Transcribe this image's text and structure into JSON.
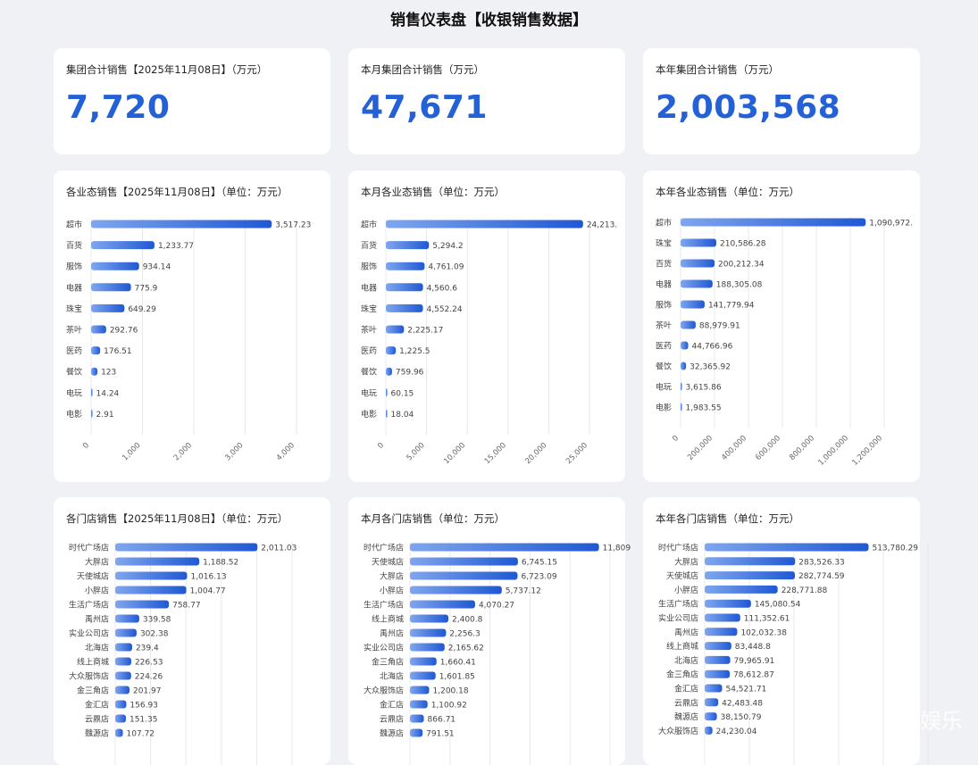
{
  "page": {
    "title": "销售仪表盘【收银销售数据】",
    "watermark": "娱乐"
  },
  "kpis": [
    {
      "title": "集团合计销售【2025年11月08日】（万元）",
      "value": "7,720"
    },
    {
      "title": "本月集团合计销售（万元）",
      "value": "47,671"
    },
    {
      "title": "本年集团合计销售（万元）",
      "value": "2,003,568"
    }
  ],
  "chart_data": [
    {
      "type": "bar",
      "orientation": "horizontal",
      "title": "各业态销售【2025年11月08日】（单位：万元）",
      "categories": [
        "超市",
        "百货",
        "服饰",
        "电器",
        "珠宝",
        "茶叶",
        "医药",
        "餐饮",
        "电玩",
        "电影"
      ],
      "values": [
        3517.23,
        1233.77,
        934.14,
        775.9,
        649.29,
        292.76,
        176.51,
        123,
        14.24,
        2.91
      ],
      "labels": [
        "3,517.23",
        "1,233.77",
        "934.14",
        "775.9",
        "649.29",
        "292.76",
        "176.51",
        "123",
        "14.24",
        "2.91"
      ],
      "xlim": [
        0,
        4000
      ],
      "xticks": [
        "0",
        "1,000",
        "2,000",
        "3,000",
        "4,000"
      ],
      "grid": true
    },
    {
      "type": "bar",
      "orientation": "horizontal",
      "title": "本月各业态销售（单位：万元）",
      "categories": [
        "超市",
        "百货",
        "服饰",
        "电器",
        "珠宝",
        "茶叶",
        "医药",
        "餐饮",
        "电玩",
        "电影"
      ],
      "values": [
        24213,
        5294.2,
        4761.09,
        4560.6,
        4552.24,
        2225.17,
        1225.5,
        759.96,
        60.15,
        18.04
      ],
      "labels": [
        "24,213.",
        "5,294.2",
        "4,761.09",
        "4,560.6",
        "4,552.24",
        "2,225.17",
        "1,225.5",
        "759.96",
        "60.15",
        "18.04"
      ],
      "xlim": [
        0,
        25000
      ],
      "xticks": [
        "0",
        "5,000",
        "10,000",
        "15,000",
        "20,000",
        "25,000"
      ],
      "grid": true
    },
    {
      "type": "bar",
      "orientation": "horizontal",
      "title": "本年各业态销售（单位：万元）",
      "categories": [
        "超市",
        "珠宝",
        "百货",
        "电器",
        "服饰",
        "茶叶",
        "医药",
        "餐饮",
        "电玩",
        "电影"
      ],
      "values": [
        1090972,
        210586.28,
        200212.34,
        188305.08,
        141779.94,
        88979.91,
        44766.96,
        32365.92,
        3615.86,
        1983.55
      ],
      "labels": [
        "1,090,972.",
        "210,586.28",
        "200,212.34",
        "188,305.08",
        "141,779.94",
        "88,979.91",
        "44,766.96",
        "32,365.92",
        "3,615.86",
        "1,983.55"
      ],
      "xlim": [
        0,
        1200000
      ],
      "xticks": [
        "0",
        "200,000",
        "400,000",
        "600,000",
        "800,000",
        "1,000,000",
        "1,200,000"
      ],
      "grid": true
    },
    {
      "type": "bar",
      "orientation": "horizontal",
      "title": "各门店销售【2025年11月08日】（单位：万元）",
      "categories": [
        "时代广场店",
        "大胖店",
        "天使城店",
        "小胖店",
        "生活广场店",
        "禹州店",
        "实业公司店",
        "北海店",
        "线上商城",
        "大众服饰店",
        "金三角店",
        "金汇店",
        "云鼎店",
        "魏源店"
      ],
      "values": [
        2011.03,
        1188.52,
        1016.13,
        1004.77,
        758.77,
        339.58,
        302.38,
        239.4,
        226.53,
        224.26,
        201.97,
        156.93,
        151.35,
        107.72
      ],
      "labels": [
        "2,011.03",
        "1,188.52",
        "1,016.13",
        "1,004.77",
        "758.77",
        "339.58",
        "302.38",
        "239.4",
        "226.53",
        "224.26",
        "201.97",
        "156.93",
        "151.35",
        "107.72"
      ],
      "xlim": [
        0,
        2500
      ],
      "grid": true
    },
    {
      "type": "bar",
      "orientation": "horizontal",
      "title": "本月各门店销售（单位：万元）",
      "categories": [
        "时代广场店",
        "天使城店",
        "大胖店",
        "小胖店",
        "生活广场店",
        "线上商城",
        "禹州店",
        "实业公司店",
        "金三角店",
        "北海店",
        "大众服饰店",
        "金汇店",
        "云鼎店",
        "魏源店"
      ],
      "values": [
        11809,
        6745.15,
        6723.09,
        5737.12,
        4070.27,
        2400.8,
        2256.3,
        2165.62,
        1660.41,
        1601.85,
        1200.18,
        1100.92,
        866.71,
        791.51
      ],
      "labels": [
        "11,809",
        "6,745.15",
        "6,723.09",
        "5,737.12",
        "4,070.27",
        "2,400.8",
        "2,256.3",
        "2,165.62",
        "1,660.41",
        "1,601.85",
        "1,200.18",
        "1,100.92",
        "866.71",
        "791.51"
      ],
      "xlim": [
        0,
        12500
      ],
      "grid": true
    },
    {
      "type": "bar",
      "orientation": "horizontal",
      "title": "本年各门店销售（单位：万元）",
      "categories": [
        "时代广场店",
        "大胖店",
        "天使城店",
        "小胖店",
        "生活广场店",
        "实业公司店",
        "禹州店",
        "线上商城",
        "北海店",
        "金三角店",
        "金汇店",
        "云鼎店",
        "魏源店",
        "大众服饰店"
      ],
      "values": [
        513780.29,
        283526.33,
        282774.59,
        228771.88,
        145080.54,
        111352.61,
        102032.38,
        83448.8,
        79965.91,
        78612.87,
        54521.71,
        42483.48,
        38150.79,
        24230.04
      ],
      "labels": [
        "513,780.29",
        "283,526.33",
        "282,774.59",
        "228,771.88",
        "145,080.54",
        "111,352.61",
        "102,032.38",
        "83,448.8",
        "79,965.91",
        "78,612.87",
        "54,521.71",
        "42,483.48",
        "38,150.79",
        "24,230.04"
      ],
      "xlim": [
        0,
        700000
      ],
      "grid": true
    }
  ]
}
